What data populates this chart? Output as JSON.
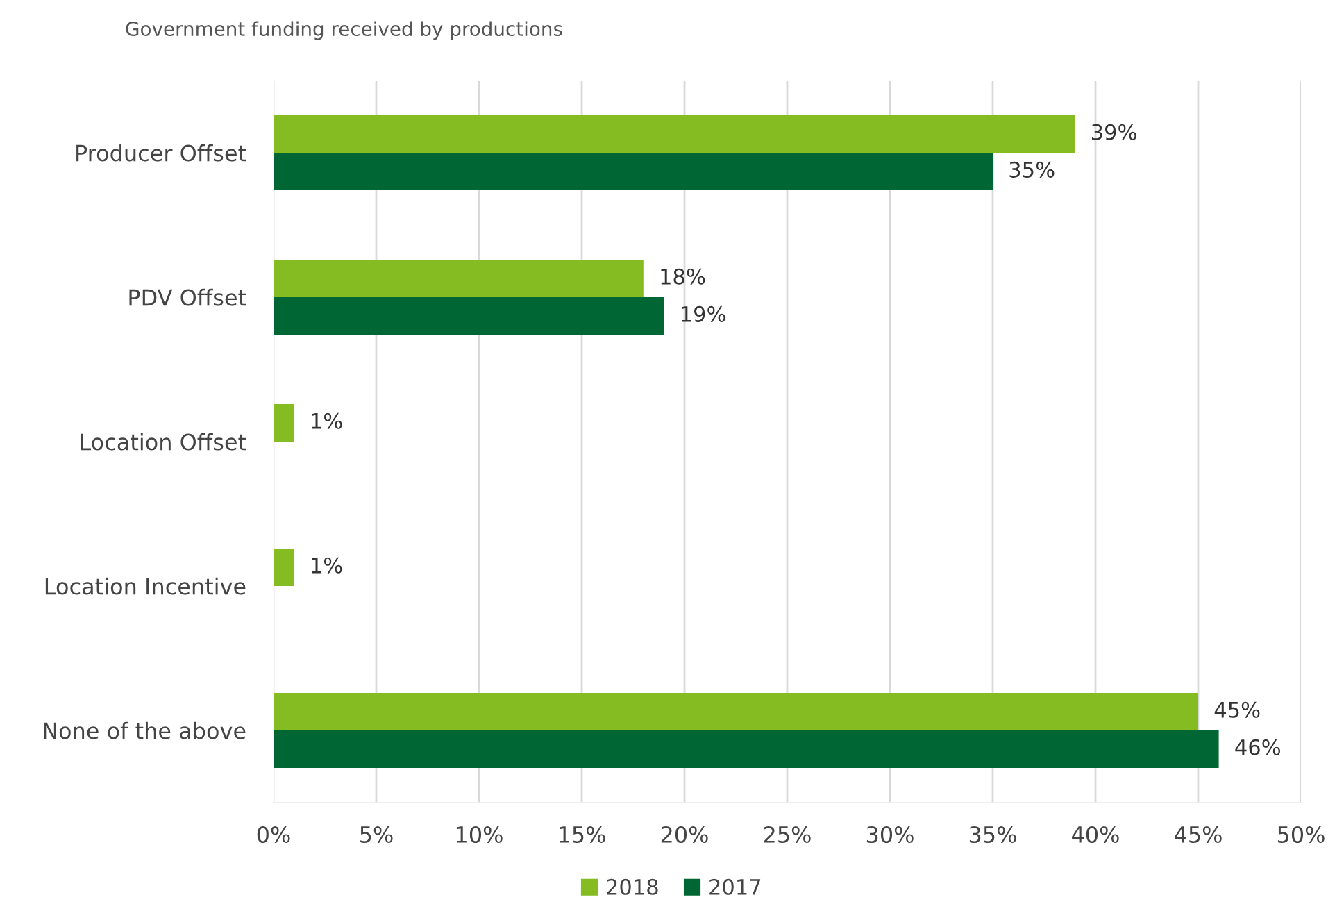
{
  "chart_data": {
    "type": "bar",
    "orientation": "horizontal",
    "title": "Government funding received by productions",
    "categories": [
      "Producer Offset",
      "PDV Offset",
      "Location Offset",
      "Location Incentive",
      "None of the above"
    ],
    "series": [
      {
        "name": "2018",
        "color": "#84bc22",
        "values": [
          39,
          18,
          1,
          1,
          45
        ],
        "value_labels": [
          "39%",
          "18%",
          "1%",
          "1%",
          "45%"
        ]
      },
      {
        "name": "2017",
        "color": "#006633",
        "values": [
          35,
          19,
          null,
          null,
          46
        ],
        "value_labels": [
          "35%",
          "19%",
          null,
          null,
          "46%"
        ]
      }
    ],
    "xlim": [
      0,
      50
    ],
    "xticks": [
      {
        "value": 0,
        "label": "0%"
      },
      {
        "value": 5,
        "label": "5%"
      },
      {
        "value": 10,
        "label": "10%"
      },
      {
        "value": 15,
        "label": "15%"
      },
      {
        "value": 20,
        "label": "20%"
      },
      {
        "value": 25,
        "label": "25%"
      },
      {
        "value": 30,
        "label": "30%"
      },
      {
        "value": 35,
        "label": "35%"
      },
      {
        "value": 40,
        "label": "40%"
      },
      {
        "value": 45,
        "label": "45%"
      },
      {
        "value": 50,
        "label": "50%"
      }
    ],
    "grid": "x",
    "legend": "bottom"
  }
}
